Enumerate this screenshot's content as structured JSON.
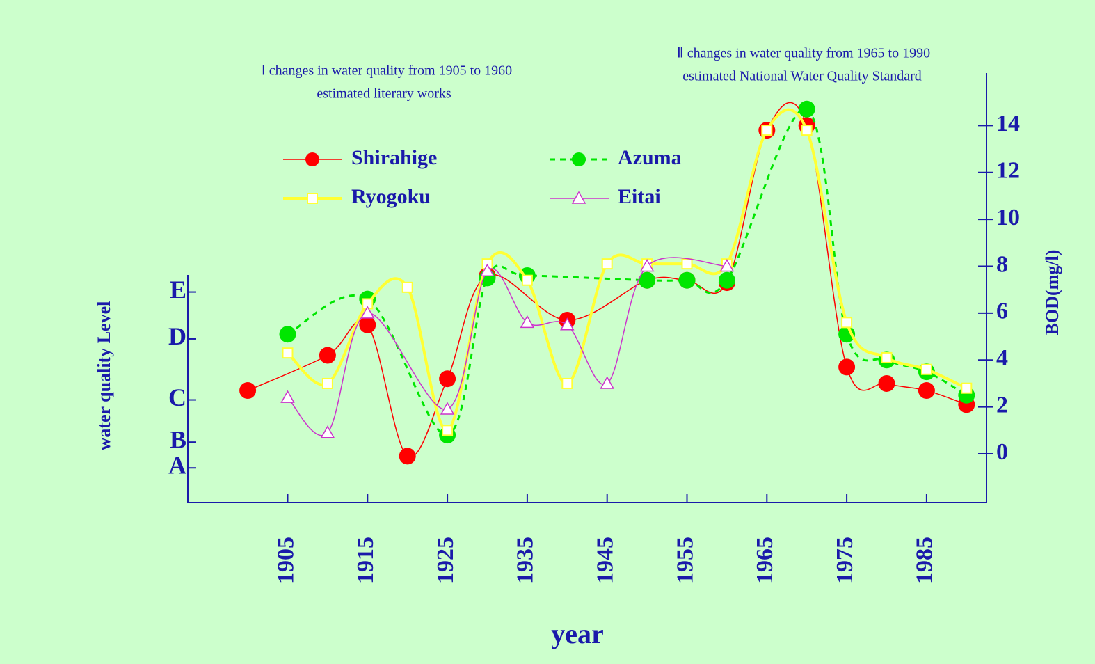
{
  "chart_data": {
    "type": "line",
    "annotations": [
      "Ⅰ changes in water quality from 1905 to 1960",
      "estimated literary works",
      "Ⅱ changes in water quality from 1965 to 1990",
      "estimated National Water Quality Standard"
    ],
    "xlabel": "year",
    "ylabel": "water quality Level",
    "y2label": "BOD(mg/l)",
    "xlim": [
      1892.5,
      1992.5
    ],
    "xticks": [
      1905,
      1915,
      1925,
      1935,
      1945,
      1955,
      1965,
      1975,
      1985
    ],
    "ylim": [
      -2,
      16
    ],
    "yticks": [
      {
        "value": 6.9,
        "label": "E"
      },
      {
        "value": 4.9,
        "label": "D"
      },
      {
        "value": 2.3,
        "label": "C"
      },
      {
        "value": 0.5,
        "label": "B"
      },
      {
        "value": -0.6,
        "label": "A"
      }
    ],
    "y2lim": [
      -2,
      16
    ],
    "y2ticks": [
      0,
      2,
      4,
      6,
      8,
      10,
      12,
      14
    ],
    "series": [
      {
        "name": "Shirahige",
        "color": "#ff0000",
        "marker": "circle",
        "axis": "y2",
        "x": [
          1900,
          1910,
          1915,
          1920,
          1925,
          1930,
          1940,
          1950,
          1955,
          1960,
          1965,
          1970,
          1975,
          1980,
          1985,
          1990
        ],
        "values": [
          2.7,
          4.2,
          5.5,
          -0.1,
          3.2,
          7.6,
          5.7,
          7.4,
          7.4,
          7.3,
          13.8,
          14.0,
          3.7,
          3.0,
          2.7,
          2.1
        ]
      },
      {
        "name": "Azuma",
        "color": "#00e600",
        "marker": "circle",
        "dashed": true,
        "axis": "y2",
        "x": [
          1905,
          1915,
          1925,
          1930,
          1935,
          1950,
          1955,
          1960,
          1970,
          1975,
          1980,
          1985,
          1990
        ],
        "values": [
          5.1,
          6.6,
          0.8,
          7.5,
          7.6,
          7.4,
          7.4,
          7.4,
          14.7,
          5.1,
          4.0,
          3.5,
          2.5
        ]
      },
      {
        "name": "Ryogoku",
        "color": "#ffff33",
        "marker": "square",
        "axis": "y2",
        "x": [
          1905,
          1910,
          1915,
          1920,
          1925,
          1930,
          1935,
          1940,
          1945,
          1950,
          1955,
          1960,
          1965,
          1970,
          1975,
          1980,
          1985,
          1990
        ],
        "values": [
          4.3,
          3.0,
          6.4,
          7.1,
          1.0,
          8.1,
          7.4,
          3.0,
          8.1,
          8.1,
          8.1,
          8.1,
          13.8,
          13.8,
          5.6,
          4.1,
          3.6,
          2.8
        ]
      },
      {
        "name": "Eitai",
        "color": "#cc33cc",
        "marker": "triangle",
        "axis": "y2",
        "x": [
          1905,
          1910,
          1915,
          1925,
          1930,
          1935,
          1940,
          1945,
          1950,
          1960
        ],
        "values": [
          2.4,
          0.9,
          6.0,
          1.9,
          7.8,
          5.6,
          5.5,
          3.0,
          8.0,
          8.0
        ]
      }
    ]
  }
}
